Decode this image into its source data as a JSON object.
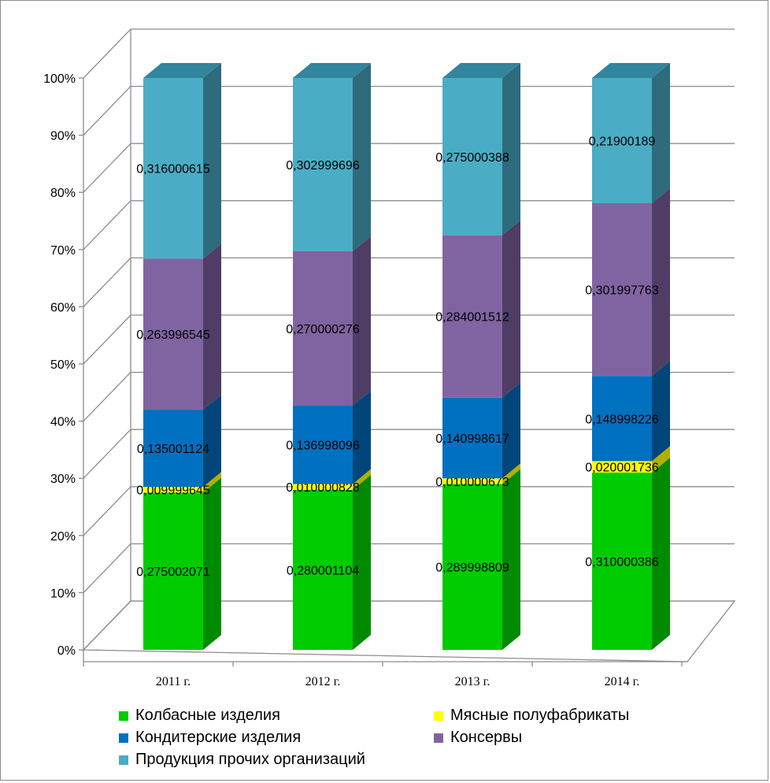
{
  "chart_data": {
    "type": "bar",
    "stacked": true,
    "percent_stacked": true,
    "three_d": true,
    "categories": [
      "2011 г.",
      "2012 г.",
      "2013 г.",
      "2014 г."
    ],
    "y_ticks": [
      "0%",
      "10%",
      "20%",
      "30%",
      "40%",
      "50%",
      "60%",
      "70%",
      "80%",
      "90%",
      "100%"
    ],
    "ylim": [
      0,
      1
    ],
    "grid": true,
    "legend_position": "bottom",
    "series": [
      {
        "name": "Колбасные изделия",
        "color": "#00cc00",
        "side_color": "#008a00",
        "values": [
          0.275002071,
          0.280001104,
          0.289998809,
          0.310000386
        ],
        "labels": [
          "0,275002071",
          "0,280001104",
          "0,289998809",
          "0,310000386"
        ]
      },
      {
        "name": "Мясные полуфабрикаты",
        "color": "#ffff00",
        "side_color": "#b0b000",
        "values": [
          0.009999645,
          0.010000828,
          0.010000673,
          0.020001736
        ],
        "labels": [
          "0,009999645",
          "0,010000828",
          "0,010000673",
          "0,020001736"
        ]
      },
      {
        "name": "Кондитерские изделия",
        "color": "#0070c0",
        "side_color": "#00467a",
        "values": [
          0.135001124,
          0.136998096,
          0.140998617,
          0.148998226
        ],
        "labels": [
          "0,135001124",
          "0,136998096",
          "0,140998617",
          "0,148998226"
        ]
      },
      {
        "name": "Консервы",
        "color": "#8064a2",
        "side_color": "#4f3d66",
        "values": [
          0.263996545,
          0.270000276,
          0.284001512,
          0.301997763
        ],
        "labels": [
          "0,263996545",
          "0,270000276",
          "0,284001512",
          "0,301997763"
        ]
      },
      {
        "name": "Продукция прочих организаций",
        "color": "#4bacc6",
        "side_color": "#2d6b7d",
        "values": [
          0.316000615,
          0.302999696,
          0.275000388,
          0.21900189
        ],
        "labels": [
          "0,316000615",
          "0,302999696",
          "0,275000388",
          "0,21900189"
        ]
      }
    ]
  }
}
